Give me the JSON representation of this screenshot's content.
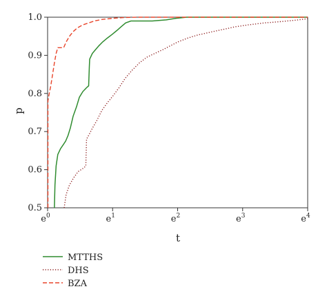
{
  "chart_data": {
    "type": "line",
    "title": "",
    "xlabel": "t",
    "ylabel": "p",
    "xscale": "log-base-e",
    "xlim": [
      1,
      54.598
    ],
    "ylim": [
      0.5,
      1.0
    ],
    "x_ticks": [
      {
        "base": "e",
        "exp": "0",
        "value": 1
      },
      {
        "base": "e",
        "exp": "1",
        "value": 2.718
      },
      {
        "base": "e",
        "exp": "2",
        "value": 7.389
      },
      {
        "base": "e",
        "exp": "3",
        "value": 20.086
      },
      {
        "base": "e",
        "exp": "4",
        "value": 54.598
      }
    ],
    "y_ticks": [
      "0.5",
      "0.6",
      "0.7",
      "0.8",
      "0.9",
      "1.0"
    ],
    "grid": false,
    "legend_position": "bottom-left",
    "series": [
      {
        "name": "MTTHS",
        "color": "#2e8b2e",
        "style": "solid",
        "points": [
          [
            1.11,
            0.5
          ],
          [
            1.12,
            0.56
          ],
          [
            1.14,
            0.61
          ],
          [
            1.17,
            0.64
          ],
          [
            1.22,
            0.655
          ],
          [
            1.27,
            0.665
          ],
          [
            1.32,
            0.675
          ],
          [
            1.37,
            0.69
          ],
          [
            1.42,
            0.71
          ],
          [
            1.48,
            0.74
          ],
          [
            1.56,
            0.765
          ],
          [
            1.63,
            0.79
          ],
          [
            1.72,
            0.805
          ],
          [
            1.82,
            0.815
          ],
          [
            1.88,
            0.82
          ],
          [
            1.9,
            0.87
          ],
          [
            1.91,
            0.89
          ],
          [
            1.99,
            0.905
          ],
          [
            2.09,
            0.915
          ],
          [
            2.2,
            0.925
          ],
          [
            2.33,
            0.935
          ],
          [
            2.5,
            0.945
          ],
          [
            2.7,
            0.955
          ],
          [
            2.9,
            0.965
          ],
          [
            3.1,
            0.975
          ],
          [
            3.32,
            0.985
          ],
          [
            3.6,
            0.99
          ],
          [
            4.0,
            0.99
          ],
          [
            5.0,
            0.99
          ],
          [
            6.2,
            0.993
          ],
          [
            7.2,
            0.997
          ],
          [
            8.5,
            1.0
          ],
          [
            54.598,
            1.0
          ]
        ]
      },
      {
        "name": "DHS",
        "color": "#8b1a1a",
        "style": "dotted",
        "points": [
          [
            1.29,
            0.5
          ],
          [
            1.33,
            0.535
          ],
          [
            1.4,
            0.56
          ],
          [
            1.5,
            0.58
          ],
          [
            1.6,
            0.595
          ],
          [
            1.75,
            0.605
          ],
          [
            1.8,
            0.61
          ],
          [
            1.82,
            0.68
          ],
          [
            1.88,
            0.69
          ],
          [
            2.0,
            0.71
          ],
          [
            2.14,
            0.73
          ],
          [
            2.3,
            0.755
          ],
          [
            2.5,
            0.775
          ],
          [
            2.75,
            0.795
          ],
          [
            3.0,
            0.815
          ],
          [
            3.3,
            0.84
          ],
          [
            3.65,
            0.86
          ],
          [
            4.1,
            0.88
          ],
          [
            4.6,
            0.895
          ],
          [
            5.2,
            0.905
          ],
          [
            5.9,
            0.915
          ],
          [
            6.6,
            0.925
          ],
          [
            7.4,
            0.935
          ],
          [
            8.6,
            0.945
          ],
          [
            10.0,
            0.953
          ],
          [
            12.0,
            0.96
          ],
          [
            14.5,
            0.967
          ],
          [
            18.0,
            0.975
          ],
          [
            22.0,
            0.98
          ],
          [
            28.0,
            0.985
          ],
          [
            35.0,
            0.988
          ],
          [
            45.0,
            0.992
          ],
          [
            54.598,
            0.996
          ]
        ]
      },
      {
        "name": "BZA",
        "color": "#e8442a",
        "style": "dashed",
        "points": [
          [
            1.005,
            0.5
          ],
          [
            1.005,
            0.78
          ],
          [
            1.02,
            0.795
          ],
          [
            1.05,
            0.82
          ],
          [
            1.08,
            0.85
          ],
          [
            1.11,
            0.88
          ],
          [
            1.14,
            0.905
          ],
          [
            1.17,
            0.92
          ],
          [
            1.28,
            0.92
          ],
          [
            1.33,
            0.935
          ],
          [
            1.4,
            0.95
          ],
          [
            1.48,
            0.962
          ],
          [
            1.58,
            0.972
          ],
          [
            1.72,
            0.98
          ],
          [
            1.88,
            0.985
          ],
          [
            2.05,
            0.99
          ],
          [
            2.3,
            0.994
          ],
          [
            2.7,
            0.997
          ],
          [
            3.2,
            0.999
          ],
          [
            4.0,
            1.0
          ],
          [
            54.598,
            1.0
          ]
        ]
      }
    ]
  }
}
